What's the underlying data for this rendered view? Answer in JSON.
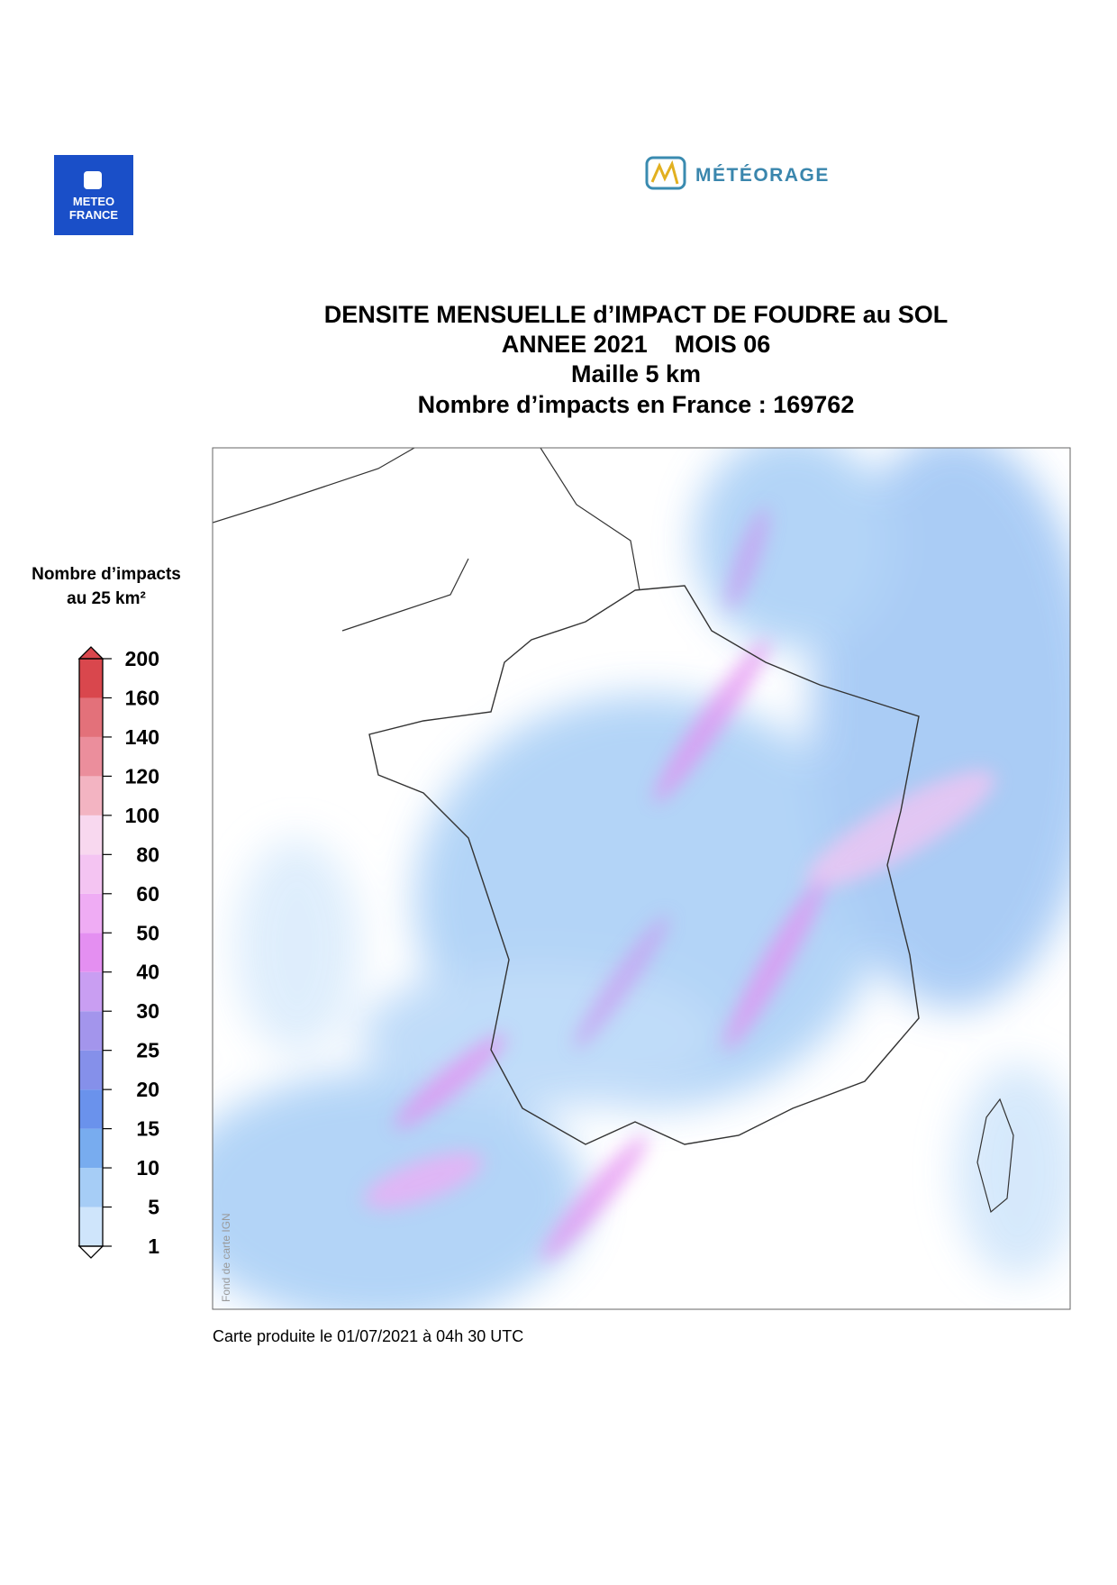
{
  "header": {
    "logo_left": [
      "METEO",
      "FRANCE"
    ],
    "logo_right": "MÉTÉORAGE",
    "title_lines": [
      "DENSITE MENSUELLE d’IMPACT DE FOUDRE au SOL",
      "ANNEE 2021    MOIS 06",
      "Maille 5 km",
      "Nombre d’impacts en France : 169762"
    ]
  },
  "legend": {
    "title_lines": [
      "Nombre d’impacts",
      "au 25 km²"
    ],
    "levels": [
      1,
      5,
      10,
      15,
      20,
      25,
      30,
      40,
      50,
      60,
      80,
      100,
      120,
      140,
      160,
      200
    ],
    "colors": [
      "#cfe5fb",
      "#a6cdf6",
      "#78acef",
      "#6a92ec",
      "#8590ea",
      "#a395ec",
      "#c99ef2",
      "#e48ff1",
      "#efacf4",
      "#f4c4f2",
      "#f8d8ef",
      "#f3b4c2",
      "#eb8e9c",
      "#e3717a",
      "#d9474d"
    ]
  },
  "map": {
    "credit": "Fond de carte IGN"
  },
  "footer": "Carte produite le 01/07/2021 à 04h 30 UTC"
}
